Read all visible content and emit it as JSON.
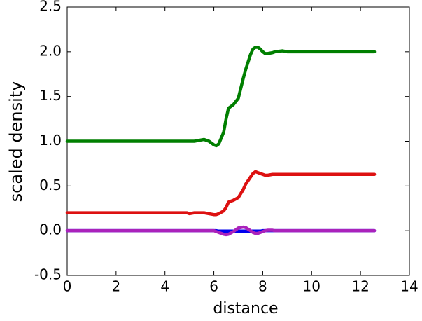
{
  "chart_data": {
    "type": "line",
    "xlabel": "distance",
    "ylabel": "scaled density",
    "x": [
      0,
      1,
      2,
      3,
      4,
      4.9,
      5.0,
      5.2,
      5.4,
      5.6,
      5.8,
      6.0,
      6.1,
      6.2,
      6.4,
      6.5,
      6.6,
      6.8,
      7.0,
      7.2,
      7.3,
      7.5,
      7.6,
      7.7,
      7.8,
      7.9,
      8.0,
      8.1,
      8.2,
      8.4,
      8.5,
      8.8,
      9.0,
      10,
      11,
      12,
      12.57
    ],
    "series": [
      {
        "color": "#007f00",
        "values": [
          1,
          1,
          1,
          1,
          1,
          1,
          1,
          1,
          1.01,
          1.02,
          1,
          0.96,
          0.95,
          0.97,
          1.1,
          1.25,
          1.37,
          1.41,
          1.48,
          1.7,
          1.8,
          1.97,
          2.03,
          2.05,
          2.05,
          2.03,
          2,
          1.98,
          1.98,
          1.99,
          2,
          2.01,
          2,
          2,
          2,
          2,
          2
        ]
      },
      {
        "color": "#dd1111",
        "values": [
          0.2,
          0.2,
          0.2,
          0.2,
          0.2,
          0.2,
          0.19,
          0.2,
          0.2,
          0.2,
          0.19,
          0.18,
          0.18,
          0.19,
          0.22,
          0.26,
          0.32,
          0.34,
          0.37,
          0.46,
          0.52,
          0.6,
          0.64,
          0.66,
          0.65,
          0.64,
          0.63,
          0.62,
          0.62,
          0.63,
          0.63,
          0.63,
          0.63,
          0.63,
          0.63,
          0.63,
          0.63
        ]
      },
      {
        "color": "#0000ee",
        "values": [
          0,
          0,
          0,
          0,
          0,
          0,
          0,
          0,
          0,
          0,
          0,
          0,
          0,
          -0.005,
          -0.005,
          -0.005,
          -0.005,
          -0.005,
          -0.005,
          -0.005,
          -0.005,
          -0.005,
          -0.005,
          -0.005,
          -0.005,
          -0.005,
          0,
          0,
          0,
          0,
          0,
          0,
          0,
          0,
          0,
          0,
          0
        ]
      },
      {
        "color": "#aa22bb",
        "values": [
          0,
          0,
          0,
          0,
          0,
          0,
          0,
          0,
          0,
          0,
          0,
          0,
          -0.01,
          -0.02,
          -0.04,
          -0.045,
          -0.04,
          -0.01,
          0.03,
          0.04,
          0.035,
          0,
          -0.02,
          -0.03,
          -0.03,
          -0.02,
          -0.01,
          0,
          0.005,
          0.005,
          0,
          0,
          0,
          0,
          0,
          0,
          0
        ]
      }
    ],
    "xlim": [
      0,
      14
    ],
    "xticks": [
      0,
      2,
      4,
      6,
      8,
      10,
      12,
      14
    ],
    "ylim": [
      -0.5,
      2.5
    ],
    "yticks": [
      -0.5,
      {
        "value": 0,
        "label": "0.0"
      },
      0.5,
      {
        "value": 1,
        "label": "1.0"
      },
      1.5,
      {
        "value": 2,
        "label": "2.0"
      },
      2.5
    ],
    "grid": false
  }
}
